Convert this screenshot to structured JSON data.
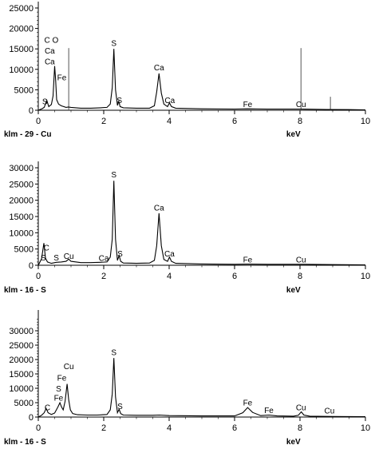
{
  "chart_data": [
    {
      "type": "line",
      "sample_label": "klm - 29 - Cu",
      "xlabel": "keV",
      "xlim": [
        0,
        10
      ],
      "ylim": [
        0,
        25000
      ],
      "x_ticks": [
        0,
        2,
        4,
        6,
        8,
        10
      ],
      "y_ticks": [
        0,
        5000,
        10000,
        15000,
        20000,
        25000
      ],
      "y_tick_labels": [
        "0",
        "5000",
        "10000",
        "15000",
        "20000",
        "25000"
      ],
      "spectrum": {
        "x": [
          0.0,
          0.12,
          0.18,
          0.26,
          0.32,
          0.4,
          0.45,
          0.5,
          0.53,
          0.56,
          0.62,
          0.7,
          0.85,
          0.92,
          1.0,
          1.3,
          1.6,
          1.9,
          2.1,
          2.2,
          2.26,
          2.31,
          2.36,
          2.42,
          2.46,
          2.5,
          2.6,
          3.0,
          3.4,
          3.55,
          3.62,
          3.69,
          3.76,
          3.84,
          3.95,
          4.01,
          4.07,
          4.2,
          5.0,
          6.0,
          6.4,
          7.0,
          8.0,
          8.8,
          9.5,
          10.0
        ],
        "y": [
          0,
          400,
          700,
          2400,
          900,
          1400,
          3500,
          10800,
          7500,
          2600,
          1500,
          1100,
          700,
          800,
          700,
          500,
          500,
          600,
          700,
          1500,
          5500,
          15000,
          5000,
          1200,
          2200,
          900,
          600,
          500,
          500,
          1100,
          4500,
          9000,
          4200,
          1500,
          900,
          1800,
          900,
          500,
          350,
          300,
          350,
          300,
          300,
          200,
          150,
          100
        ]
      },
      "vertical_lines": [
        {
          "x": 0.93,
          "y": 15200
        },
        {
          "x": 8.03,
          "y": 15200
        },
        {
          "x": 8.93,
          "y": 3300
        }
      ],
      "peak_labels": [
        {
          "text": "C O",
          "x": 0.4,
          "y": 16500
        },
        {
          "text": "Ca",
          "x": 0.35,
          "y": 13900
        },
        {
          "text": "Ca",
          "x": 0.35,
          "y": 11200
        },
        {
          "text": "Fe",
          "x": 0.72,
          "y": 7300
        },
        {
          "text": "S",
          "x": 0.2,
          "y": 1500
        },
        {
          "text": "S",
          "x": 2.31,
          "y": 15700
        },
        {
          "text": "S",
          "x": 2.48,
          "y": 1800
        },
        {
          "text": "Ca",
          "x": 3.69,
          "y": 9800
        },
        {
          "text": "Ca",
          "x": 4.02,
          "y": 1800
        },
        {
          "text": "Fe",
          "x": 6.4,
          "y": 800
        },
        {
          "text": "Cu",
          "x": 8.03,
          "y": 800
        }
      ]
    },
    {
      "type": "line",
      "sample_label": "klm - 16 - S",
      "xlabel": "keV",
      "xlim": [
        0,
        10
      ],
      "ylim": [
        0,
        30000
      ],
      "x_ticks": [
        0,
        2,
        4,
        6,
        8,
        10
      ],
      "y_ticks": [
        0,
        5000,
        10000,
        15000,
        20000,
        25000,
        30000
      ],
      "y_tick_labels": [
        "0",
        "5000",
        "10000",
        "15000",
        "20000",
        "25000",
        "30000"
      ],
      "spectrum": {
        "x": [
          0.0,
          0.1,
          0.17,
          0.22,
          0.28,
          0.4,
          0.55,
          0.7,
          0.85,
          0.93,
          1.0,
          1.3,
          1.6,
          1.9,
          2.1,
          2.2,
          2.26,
          2.31,
          2.36,
          2.42,
          2.47,
          2.52,
          2.6,
          3.0,
          3.4,
          3.55,
          3.62,
          3.69,
          3.76,
          3.84,
          3.95,
          4.01,
          4.07,
          4.2,
          5.0,
          6.0,
          6.4,
          7.0,
          8.0,
          9.0,
          10.0
        ],
        "y": [
          0,
          2000,
          6800,
          2200,
          1000,
          600,
          900,
          1000,
          1200,
          1900,
          1200,
          800,
          800,
          900,
          1000,
          2500,
          8000,
          26000,
          8000,
          1500,
          3000,
          1200,
          700,
          600,
          700,
          1500,
          6000,
          16000,
          6000,
          1800,
          1200,
          2500,
          1200,
          600,
          400,
          300,
          350,
          300,
          300,
          200,
          100
        ]
      },
      "vertical_lines": [],
      "peak_labels": [
        {
          "text": "C",
          "x": 0.25,
          "y": 4500
        },
        {
          "text": "S",
          "x": 0.15,
          "y": 1500
        },
        {
          "text": "S",
          "x": 0.55,
          "y": 1500
        },
        {
          "text": "Cu",
          "x": 0.93,
          "y": 2000
        },
        {
          "text": "Ca",
          "x": 2.0,
          "y": 1300
        },
        {
          "text": "S",
          "x": 2.31,
          "y": 27000
        },
        {
          "text": "S",
          "x": 2.5,
          "y": 2700
        },
        {
          "text": "Ca",
          "x": 3.69,
          "y": 16800
        },
        {
          "text": "Ca",
          "x": 4.01,
          "y": 2700
        },
        {
          "text": "Fe",
          "x": 6.4,
          "y": 900
        },
        {
          "text": "Cu",
          "x": 8.03,
          "y": 900
        }
      ]
    },
    {
      "type": "line",
      "sample_label": "klm - 16 - S",
      "xlabel": "keV",
      "xlim": [
        0,
        10
      ],
      "ylim": [
        0,
        35000
      ],
      "x_ticks": [
        0,
        2,
        4,
        6,
        8,
        10
      ],
      "y_ticks": [
        0,
        5000,
        10000,
        15000,
        20000,
        25000,
        30000
      ],
      "y_tick_labels": [
        "0",
        "5000",
        "10000",
        "15000",
        "20000",
        "25000",
        "30000"
      ],
      "spectrum": {
        "x": [
          0.0,
          0.1,
          0.18,
          0.24,
          0.3,
          0.4,
          0.5,
          0.6,
          0.66,
          0.71,
          0.76,
          0.82,
          0.88,
          0.93,
          0.98,
          1.05,
          1.2,
          1.5,
          1.8,
          2.1,
          2.2,
          2.26,
          2.31,
          2.36,
          2.42,
          2.47,
          2.52,
          2.6,
          3.0,
          3.5,
          3.7,
          4.0,
          5.0,
          6.0,
          6.25,
          6.4,
          6.55,
          6.8,
          7.05,
          7.3,
          7.8,
          7.95,
          8.04,
          8.12,
          8.3,
          9.0,
          10.0
        ],
        "y": [
          0,
          600,
          1500,
          3000,
          1500,
          900,
          1400,
          3500,
          5000,
          3500,
          2500,
          5500,
          11500,
          6000,
          2500,
          1200,
          800,
          700,
          700,
          900,
          2500,
          8000,
          20500,
          7000,
          1500,
          2700,
          1200,
          700,
          600,
          600,
          700,
          500,
          400,
          400,
          1500,
          3300,
          1600,
          500,
          700,
          400,
          300,
          600,
          1800,
          700,
          300,
          200,
          100
        ]
      },
      "vertical_lines": [],
      "peak_labels": [
        {
          "text": "C",
          "x": 0.28,
          "y": 2300
        },
        {
          "text": "Fe",
          "x": 0.62,
          "y": 5700
        },
        {
          "text": "S",
          "x": 0.62,
          "y": 8900
        },
        {
          "text": "Fe",
          "x": 0.72,
          "y": 12700
        },
        {
          "text": "Cu",
          "x": 0.93,
          "y": 16700
        },
        {
          "text": "S",
          "x": 2.31,
          "y": 21500
        },
        {
          "text": "S",
          "x": 2.5,
          "y": 2800
        },
        {
          "text": "Fe",
          "x": 6.4,
          "y": 4000
        },
        {
          "text": "Fe",
          "x": 7.05,
          "y": 1400
        },
        {
          "text": "Cu",
          "x": 8.03,
          "y": 2400
        },
        {
          "text": "Cu",
          "x": 8.9,
          "y": 1200
        }
      ]
    }
  ]
}
